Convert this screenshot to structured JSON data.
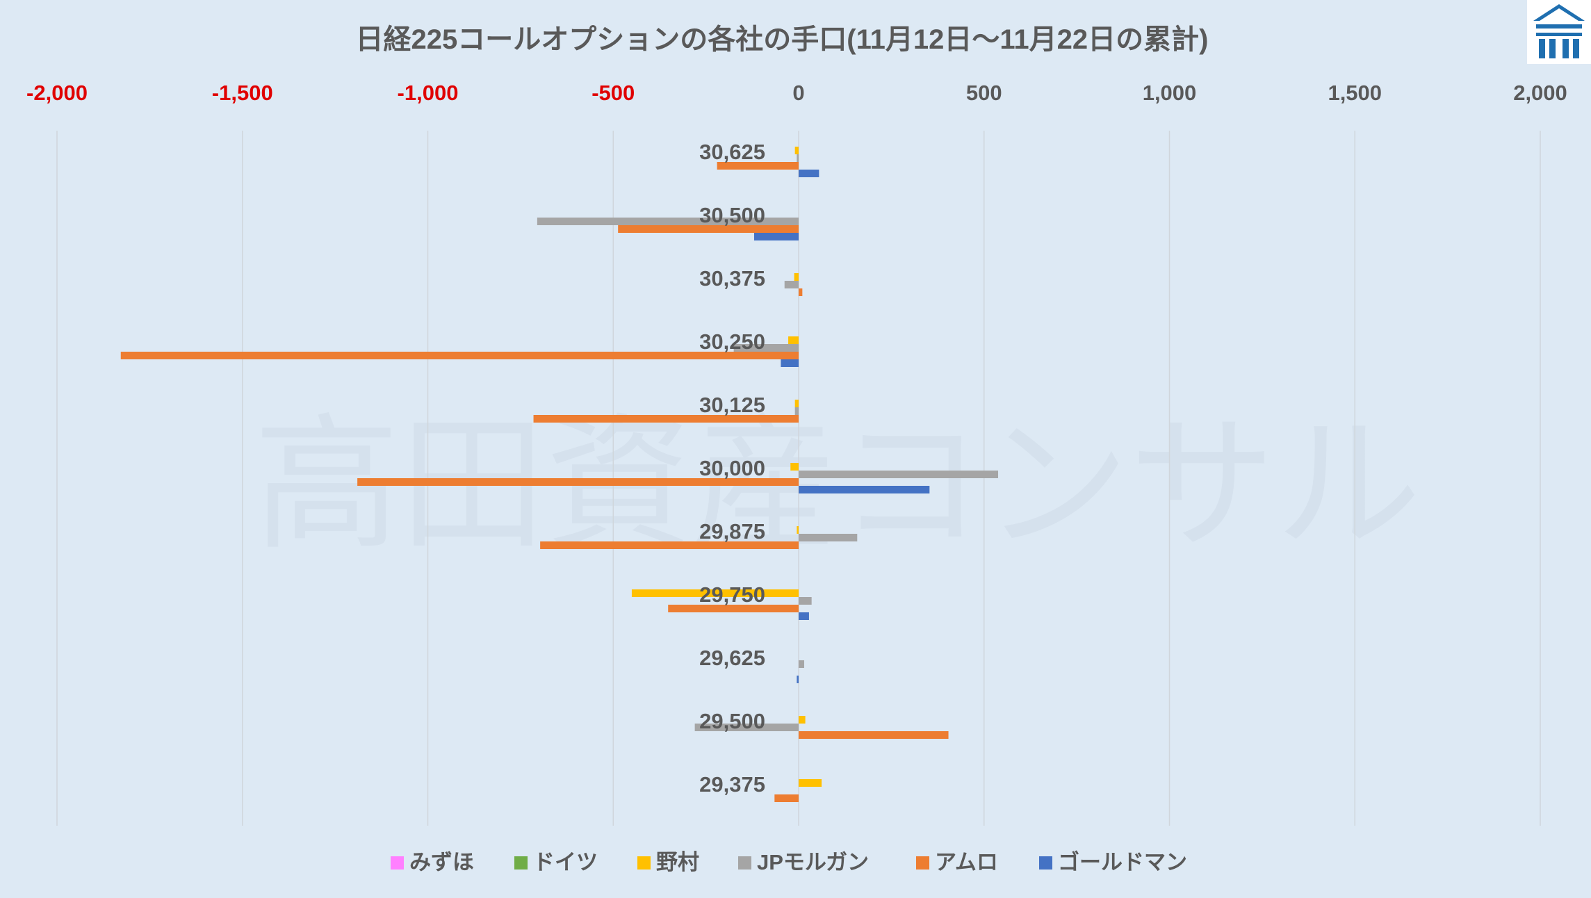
{
  "chart_data": {
    "type": "bar",
    "orientation": "horizontal",
    "title": "日経225コールオプションの各社の手口(11月12日～11月22日の累計)",
    "watermark": "高田資産コンサル",
    "xlim": [
      -2000,
      2000
    ],
    "x_ticks": [
      -2000,
      -1500,
      -1000,
      -500,
      0,
      500,
      1000,
      1500,
      2000
    ],
    "x_tick_labels": [
      "-2,000",
      "-1,500",
      "-1,000",
      "-500",
      "0",
      "500",
      "1,000",
      "1,500",
      "2,000"
    ],
    "negative_tick_color": "#e00000",
    "positive_tick_color": "#595959",
    "grid": true,
    "legend_position": "bottom",
    "categories": [
      "30,625",
      "30,500",
      "30,375",
      "30,250",
      "30,125",
      "30,000",
      "29,875",
      "29,750",
      "29,625",
      "29,500",
      "29,375"
    ],
    "series": [
      {
        "name": "みずほ",
        "color": "#ff80ff",
        "values": [
          0,
          0,
          0,
          0,
          0,
          0,
          0,
          0,
          0,
          0,
          0
        ]
      },
      {
        "name": "ドイツ",
        "color": "#70ad47",
        "values": [
          0,
          0,
          0,
          0,
          0,
          0,
          0,
          0,
          0,
          0,
          0
        ]
      },
      {
        "name": "野村",
        "color": "#ffc000",
        "values": [
          -10,
          0,
          -12,
          -28,
          -10,
          -22,
          -5,
          -450,
          0,
          18,
          62
        ]
      },
      {
        "name": "JPモルガン",
        "color": "#a5a5a5",
        "values": [
          -5,
          -705,
          -38,
          -175,
          -10,
          538,
          158,
          35,
          15,
          -280,
          0
        ]
      },
      {
        "name": "アムロ",
        "color": "#ed7d31",
        "values": [
          -220,
          -487,
          10,
          -1828,
          -715,
          -1190,
          -697,
          -352,
          0,
          404,
          -65
        ]
      },
      {
        "name": "ゴールドマン",
        "color": "#4472c4",
        "values": [
          55,
          -120,
          0,
          -48,
          0,
          353,
          0,
          28,
          -5,
          0,
          0
        ]
      }
    ]
  },
  "logo": {
    "name": "takada-logo-icon",
    "color": "#1f6fb0"
  }
}
